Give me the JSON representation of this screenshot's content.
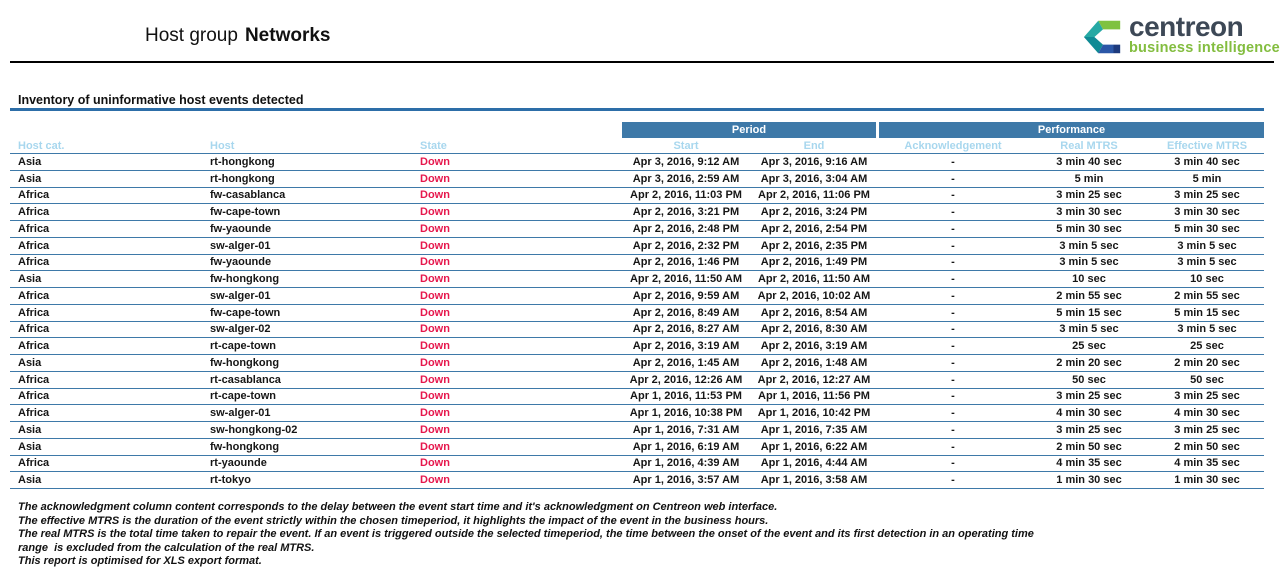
{
  "header": {
    "title_prefix": "Host group",
    "title_name": "Networks",
    "logo": {
      "brand": "centreon",
      "tagline": "business intelligence"
    }
  },
  "section": {
    "title": "Inventory of uninformative host events detected"
  },
  "table": {
    "group_headers": {
      "period": "Period",
      "performance": "Performance"
    },
    "columns": [
      "Host cat.",
      "Host",
      "State",
      "Start",
      "End",
      "Acknowledgement",
      "Real MTRS",
      "Effective MTRS"
    ],
    "rows": [
      {
        "host_cat": "Asia",
        "host": "rt-hongkong",
        "state": "Down",
        "start": "Apr 3, 2016, 9:12 AM",
        "end": "Apr 3, 2016, 9:16 AM",
        "ack": "-",
        "real_mtrs": "3 min 40 sec",
        "effective_mtrs": "3 min 40 sec"
      },
      {
        "host_cat": "Asia",
        "host": "rt-hongkong",
        "state": "Down",
        "start": "Apr 3, 2016, 2:59 AM",
        "end": "Apr 3, 2016, 3:04 AM",
        "ack": "-",
        "real_mtrs": "5 min",
        "effective_mtrs": "5 min"
      },
      {
        "host_cat": "Africa",
        "host": "fw-casablanca",
        "state": "Down",
        "start": "Apr 2, 2016, 11:03 PM",
        "end": "Apr 2, 2016, 11:06 PM",
        "ack": "-",
        "real_mtrs": "3 min 25 sec",
        "effective_mtrs": "3 min 25 sec"
      },
      {
        "host_cat": "Africa",
        "host": "fw-cape-town",
        "state": "Down",
        "start": "Apr 2, 2016, 3:21 PM",
        "end": "Apr 2, 2016, 3:24 PM",
        "ack": "-",
        "real_mtrs": "3 min 30 sec",
        "effective_mtrs": "3 min 30 sec"
      },
      {
        "host_cat": "Africa",
        "host": "fw-yaounde",
        "state": "Down",
        "start": "Apr 2, 2016, 2:48 PM",
        "end": "Apr 2, 2016, 2:54 PM",
        "ack": "-",
        "real_mtrs": "5 min 30 sec",
        "effective_mtrs": "5 min 30 sec"
      },
      {
        "host_cat": "Africa",
        "host": "sw-alger-01",
        "state": "Down",
        "start": "Apr 2, 2016, 2:32 PM",
        "end": "Apr 2, 2016, 2:35 PM",
        "ack": "-",
        "real_mtrs": "3 min 5 sec",
        "effective_mtrs": "3 min 5 sec"
      },
      {
        "host_cat": "Africa",
        "host": "fw-yaounde",
        "state": "Down",
        "start": "Apr 2, 2016, 1:46 PM",
        "end": "Apr 2, 2016, 1:49 PM",
        "ack": "-",
        "real_mtrs": "3 min 5 sec",
        "effective_mtrs": "3 min 5 sec"
      },
      {
        "host_cat": "Asia",
        "host": "fw-hongkong",
        "state": "Down",
        "start": "Apr 2, 2016, 11:50 AM",
        "end": "Apr 2, 2016, 11:50 AM",
        "ack": "-",
        "real_mtrs": "10 sec",
        "effective_mtrs": "10 sec"
      },
      {
        "host_cat": "Africa",
        "host": "sw-alger-01",
        "state": "Down",
        "start": "Apr 2, 2016, 9:59 AM",
        "end": "Apr 2, 2016, 10:02 AM",
        "ack": "-",
        "real_mtrs": "2 min 55 sec",
        "effective_mtrs": "2 min 55 sec"
      },
      {
        "host_cat": "Africa",
        "host": "fw-cape-town",
        "state": "Down",
        "start": "Apr 2, 2016, 8:49 AM",
        "end": "Apr 2, 2016, 8:54 AM",
        "ack": "-",
        "real_mtrs": "5 min 15 sec",
        "effective_mtrs": "5 min 15 sec"
      },
      {
        "host_cat": "Africa",
        "host": "sw-alger-02",
        "state": "Down",
        "start": "Apr 2, 2016, 8:27 AM",
        "end": "Apr 2, 2016, 8:30 AM",
        "ack": "-",
        "real_mtrs": "3 min 5 sec",
        "effective_mtrs": "3 min 5 sec"
      },
      {
        "host_cat": "Africa",
        "host": "rt-cape-town",
        "state": "Down",
        "start": "Apr 2, 2016, 3:19 AM",
        "end": "Apr 2, 2016, 3:19 AM",
        "ack": "-",
        "real_mtrs": "25 sec",
        "effective_mtrs": "25 sec"
      },
      {
        "host_cat": "Asia",
        "host": "fw-hongkong",
        "state": "Down",
        "start": "Apr 2, 2016, 1:45 AM",
        "end": "Apr 2, 2016, 1:48 AM",
        "ack": "-",
        "real_mtrs": "2 min 20 sec",
        "effective_mtrs": "2 min 20 sec"
      },
      {
        "host_cat": "Africa",
        "host": "rt-casablanca",
        "state": "Down",
        "start": "Apr 2, 2016, 12:26 AM",
        "end": "Apr 2, 2016, 12:27 AM",
        "ack": "-",
        "real_mtrs": "50 sec",
        "effective_mtrs": "50 sec"
      },
      {
        "host_cat": "Africa",
        "host": "rt-cape-town",
        "state": "Down",
        "start": "Apr 1, 2016, 11:53 PM",
        "end": "Apr 1, 2016, 11:56 PM",
        "ack": "-",
        "real_mtrs": "3 min 25 sec",
        "effective_mtrs": "3 min 25 sec"
      },
      {
        "host_cat": "Africa",
        "host": "sw-alger-01",
        "state": "Down",
        "start": "Apr 1, 2016, 10:38 PM",
        "end": "Apr 1, 2016, 10:42 PM",
        "ack": "-",
        "real_mtrs": "4 min 30 sec",
        "effective_mtrs": "4 min 30 sec"
      },
      {
        "host_cat": "Asia",
        "host": "sw-hongkong-02",
        "state": "Down",
        "start": "Apr 1, 2016, 7:31 AM",
        "end": "Apr 1, 2016, 7:35 AM",
        "ack": "-",
        "real_mtrs": "3 min 25 sec",
        "effective_mtrs": "3 min 25 sec"
      },
      {
        "host_cat": "Asia",
        "host": "fw-hongkong",
        "state": "Down",
        "start": "Apr 1, 2016, 6:19 AM",
        "end": "Apr 1, 2016, 6:22 AM",
        "ack": "-",
        "real_mtrs": "2 min 50 sec",
        "effective_mtrs": "2 min 50 sec"
      },
      {
        "host_cat": "Africa",
        "host": "rt-yaounde",
        "state": "Down",
        "start": "Apr 1, 2016, 4:39 AM",
        "end": "Apr 1, 2016, 4:44 AM",
        "ack": "-",
        "real_mtrs": "4 min 35 sec",
        "effective_mtrs": "4 min 35 sec"
      },
      {
        "host_cat": "Asia",
        "host": "rt-tokyo",
        "state": "Down",
        "start": "Apr 1, 2016, 3:57 AM",
        "end": "Apr 1, 2016, 3:58 AM",
        "ack": "-",
        "real_mtrs": "1 min 30 sec",
        "effective_mtrs": "1 min 30 sec"
      }
    ]
  },
  "footnotes": [
    "The acknowledgment column content corresponds to the delay between the event start time and it's acknowledgment on Centreon web interface.",
    "The effective MTRS is the duration of the event strictly within the chosen timeperiod, it highlights the impact of the event in the business hours.",
    "The real MTRS is the total time taken to repair the event. If an event is triggered outside the selected timeperiod, the time between the onset of the event and its first detection in an operating time",
    "range  is excluded from the calculation of the real MTRS.",
    "This report is optimised for XLS export format."
  ],
  "colors": {
    "bar-blue": "#3e79a8",
    "rule-blue": "#2d6ea8",
    "lightblue": "#a8d7ee",
    "state-red": "#e6184d",
    "logo-green": "#83bd3f"
  }
}
